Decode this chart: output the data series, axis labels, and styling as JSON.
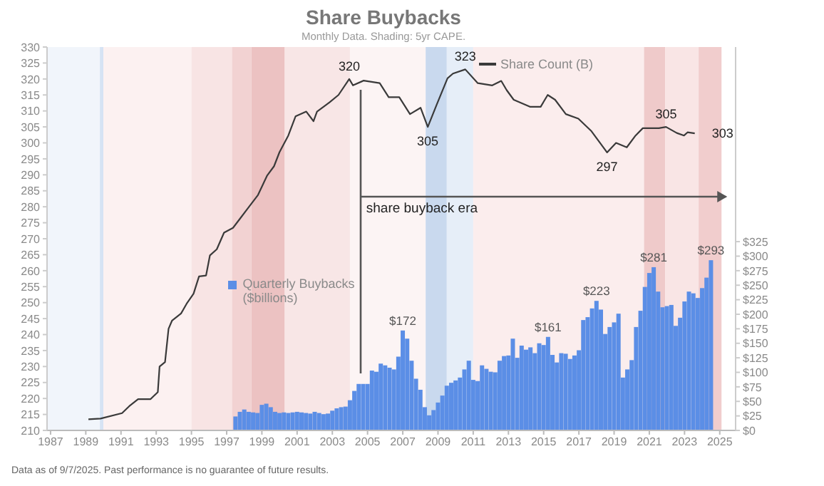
{
  "chart_data": {
    "type": "bar",
    "title": "Share Buybacks",
    "subtitle": "Monthly Data. Shading: 5yr CAPE.",
    "annotations": [
      "Data as of 9/7/2025. Past performance is no guarantee of future results."
    ],
    "ref_lines": [
      {
        "axis": "x",
        "value": 2004.6,
        "label": "share buyback era",
        "color": "#555555"
      }
    ],
    "xlim": [
      1986.8,
      2025.9
    ],
    "xticks": [
      1987,
      1989,
      1991,
      1993,
      1995,
      1997,
      1999,
      2001,
      2003,
      2005,
      2007,
      2009,
      2011,
      2013,
      2015,
      2017,
      2019,
      2021,
      2023,
      2025
    ],
    "ylim": [
      210,
      330
    ],
    "yticks": [
      210,
      215,
      220,
      225,
      230,
      235,
      240,
      245,
      250,
      255,
      260,
      265,
      270,
      275,
      280,
      285,
      290,
      295,
      300,
      305,
      310,
      315,
      320,
      325,
      330
    ],
    "y2lim": [
      0,
      660
    ],
    "y2ticks": [
      {
        "value": 0,
        "label": "$0"
      },
      {
        "value": 25,
        "label": "$25"
      },
      {
        "value": 50,
        "label": "$50"
      },
      {
        "value": 75,
        "label": "$75"
      },
      {
        "value": 100,
        "label": "$100"
      },
      {
        "value": 125,
        "label": "$125"
      },
      {
        "value": 150,
        "label": "$150"
      },
      {
        "value": 175,
        "label": "$175"
      },
      {
        "value": 200,
        "label": "$200"
      },
      {
        "value": 225,
        "label": "$225"
      },
      {
        "value": 250,
        "label": "$250"
      },
      {
        "value": 275,
        "label": "$275"
      },
      {
        "value": 300,
        "label": "$300"
      },
      {
        "value": 325,
        "label": "$325"
      }
    ],
    "legend": "top right",
    "bands": [
      {
        "axis": "x",
        "from": 1986.8,
        "to": 1989.8,
        "color": "#f1f5fb"
      },
      {
        "axis": "x",
        "from": 1989.8,
        "to": 1990.0,
        "color": "#d6e3f4"
      },
      {
        "axis": "x",
        "from": 1990.0,
        "to": 1995.0,
        "color": "#fcf1f1"
      },
      {
        "axis": "x",
        "from": 1995.0,
        "to": 1997.3,
        "color": "#f8e4e4"
      },
      {
        "axis": "x",
        "from": 1997.3,
        "to": 1998.4,
        "color": "#f2d2d2"
      },
      {
        "axis": "x",
        "from": 1998.4,
        "to": 2000.3,
        "color": "#ecc2c2"
      },
      {
        "axis": "x",
        "from": 2000.3,
        "to": 2004.0,
        "color": "#f8e6e6"
      },
      {
        "axis": "x",
        "from": 2004.0,
        "to": 2008.3,
        "color": "#fcf4f4"
      },
      {
        "axis": "x",
        "from": 2008.3,
        "to": 2009.5,
        "color": "#c9d9ee"
      },
      {
        "axis": "x",
        "from": 2009.5,
        "to": 2011.0,
        "color": "#e6eef8"
      },
      {
        "axis": "x",
        "from": 2011.0,
        "to": 2020.7,
        "color": "#fbeded"
      },
      {
        "axis": "x",
        "from": 2020.7,
        "to": 2021.9,
        "color": "#efcaca"
      },
      {
        "axis": "x",
        "from": 2021.9,
        "to": 2023.8,
        "color": "#f9e5e5"
      },
      {
        "axis": "x",
        "from": 2023.8,
        "to": 2025.1,
        "color": "#f1cdcd"
      }
    ],
    "series": [
      {
        "name": "Share Count (B)",
        "type": "line",
        "color": "#3a3a3a",
        "x": [
          1989.15,
          1989.84,
          1991.06,
          1991.47,
          1991.97,
          1992.68,
          1993.09,
          1993.19,
          1993.5,
          1993.7,
          1993.9,
          1994.41,
          1994.72,
          1995.12,
          1995.43,
          1995.83,
          1996.05,
          1996.44,
          1996.85,
          1997.36,
          1997.76,
          1998.17,
          1998.78,
          1999.29,
          1999.69,
          2000.0,
          2000.5,
          2000.91,
          2001.52,
          2001.93,
          2002.13,
          2002.84,
          2003.35,
          2003.96,
          2004.17,
          2004.78,
          2005.69,
          2006.2,
          2006.8,
          2007.41,
          2008.01,
          2008.42,
          2008.93,
          2009.54,
          2009.85,
          2010.55,
          2011.26,
          2012.08,
          2012.59,
          2012.9,
          2013.3,
          2014.22,
          2014.83,
          2015.23,
          2015.65,
          2016.26,
          2016.97,
          2017.69,
          2018.6,
          2019.11,
          2019.72,
          2020.22,
          2020.63,
          2021.54,
          2021.95,
          2022.56,
          2022.97,
          2023.17,
          2023.58
        ],
        "values": [
          213.5,
          213.7,
          215.4,
          217.6,
          219.8,
          219.8,
          222,
          230,
          231.4,
          241.8,
          244.4,
          246.6,
          249.6,
          252.8,
          258.2,
          258.5,
          264.8,
          266.7,
          271.9,
          273.4,
          276.3,
          279.3,
          283.7,
          289.7,
          292.7,
          297.1,
          302.3,
          308.3,
          309.8,
          306.8,
          309.8,
          312.7,
          315,
          320,
          318,
          319.5,
          318.7,
          314.3,
          314.3,
          309,
          311,
          305,
          312,
          320.2,
          321.7,
          323,
          318.7,
          318,
          319.4,
          316.5,
          313.5,
          311.3,
          311.3,
          315,
          313.5,
          309,
          307.6,
          303.8,
          297,
          300,
          298.6,
          302.3,
          304.6,
          304.6,
          305,
          303.1,
          302.3,
          303.3,
          303
        ],
        "value_labels": [
          null,
          null,
          null,
          null,
          null,
          null,
          null,
          null,
          null,
          null,
          null,
          null,
          null,
          null,
          null,
          null,
          null,
          null,
          null,
          null,
          null,
          null,
          null,
          null,
          null,
          null,
          null,
          null,
          null,
          null,
          null,
          null,
          null,
          "320",
          null,
          null,
          null,
          null,
          null,
          null,
          null,
          "305",
          null,
          null,
          null,
          "323",
          null,
          null,
          null,
          null,
          null,
          null,
          null,
          null,
          null,
          null,
          null,
          null,
          "297",
          null,
          null,
          null,
          null,
          null,
          "305",
          null,
          null,
          null,
          "303"
        ]
      },
      {
        "name": "Quarterly Buybacks ($billions)",
        "type": "bar",
        "axis": "y2",
        "color": "#5b8ee6",
        "x": [
          1997.5,
          1997.75,
          1998,
          1998.25,
          1998.5,
          1998.75,
          1999,
          1999.25,
          1999.5,
          1999.75,
          2000,
          2000.25,
          2000.5,
          2000.75,
          2001,
          2001.25,
          2001.5,
          2001.75,
          2002,
          2002.25,
          2002.5,
          2002.75,
          2003,
          2003.25,
          2003.5,
          2003.75,
          2004,
          2004.25,
          2004.5,
          2004.75,
          2005,
          2005.25,
          2005.5,
          2005.75,
          2006,
          2006.25,
          2006.5,
          2006.75,
          2007,
          2007.25,
          2007.5,
          2007.75,
          2008,
          2008.25,
          2008.5,
          2008.75,
          2009,
          2009.25,
          2009.5,
          2009.75,
          2010,
          2010.25,
          2010.5,
          2010.75,
          2011,
          2011.25,
          2011.5,
          2011.75,
          2012,
          2012.25,
          2012.5,
          2012.75,
          2013,
          2013.25,
          2013.5,
          2013.75,
          2014,
          2014.25,
          2014.5,
          2014.75,
          2015,
          2015.25,
          2015.5,
          2015.75,
          2016,
          2016.25,
          2016.5,
          2016.75,
          2017,
          2017.25,
          2017.5,
          2017.75,
          2018,
          2018.25,
          2018.5,
          2018.75,
          2019,
          2019.25,
          2019.5,
          2019.75,
          2020,
          2020.25,
          2020.5,
          2020.75,
          2021,
          2021.25,
          2021.5,
          2021.75,
          2022,
          2022.25,
          2022.5,
          2022.75,
          2023,
          2023.25,
          2023.5,
          2023.75,
          2024,
          2024.25,
          2024.5
        ],
        "values": [
          24,
          32,
          36,
          32,
          31,
          30,
          44,
          46,
          40,
          32,
          30,
          31,
          30,
          31,
          32,
          31,
          30,
          29,
          32,
          30,
          28,
          29,
          34,
          38,
          40,
          41,
          52,
          68,
          80,
          80,
          80,
          103,
          101,
          115,
          112,
          108,
          105,
          127,
          172,
          158,
          120,
          89,
          70,
          40,
          26,
          35,
          48,
          60,
          77,
          82,
          86,
          91,
          105,
          120,
          87,
          85,
          112,
          106,
          101,
          100,
          120,
          128,
          129,
          158,
          125,
          146,
          139,
          143,
          133,
          150,
          147,
          161,
          130,
          117,
          133,
          132,
          123,
          129,
          138,
          190,
          195,
          210,
          223,
          208,
          166,
          178,
          186,
          201,
          91,
          105,
          121,
          178,
          206,
          247,
          271,
          281,
          239,
          212,
          214,
          216,
          180,
          194,
          222,
          239,
          236,
          228,
          245,
          263,
          293
        ],
        "value_labels": [
          null,
          null,
          null,
          null,
          null,
          null,
          null,
          null,
          null,
          null,
          null,
          null,
          null,
          null,
          null,
          null,
          null,
          null,
          null,
          null,
          null,
          null,
          null,
          null,
          null,
          null,
          null,
          null,
          null,
          null,
          null,
          null,
          null,
          null,
          null,
          null,
          null,
          null,
          "$172",
          null,
          null,
          null,
          null,
          null,
          null,
          null,
          null,
          null,
          null,
          null,
          null,
          null,
          null,
          null,
          null,
          null,
          null,
          null,
          null,
          null,
          null,
          null,
          null,
          null,
          null,
          null,
          null,
          null,
          null,
          null,
          null,
          "$161",
          null,
          null,
          null,
          null,
          null,
          null,
          null,
          null,
          null,
          null,
          "$223",
          null,
          null,
          null,
          null,
          null,
          null,
          null,
          null,
          null,
          null,
          null,
          null,
          "$281",
          null,
          null,
          null,
          null,
          null,
          null,
          null,
          null,
          null,
          null,
          null,
          null,
          "$293"
        ]
      }
    ]
  }
}
